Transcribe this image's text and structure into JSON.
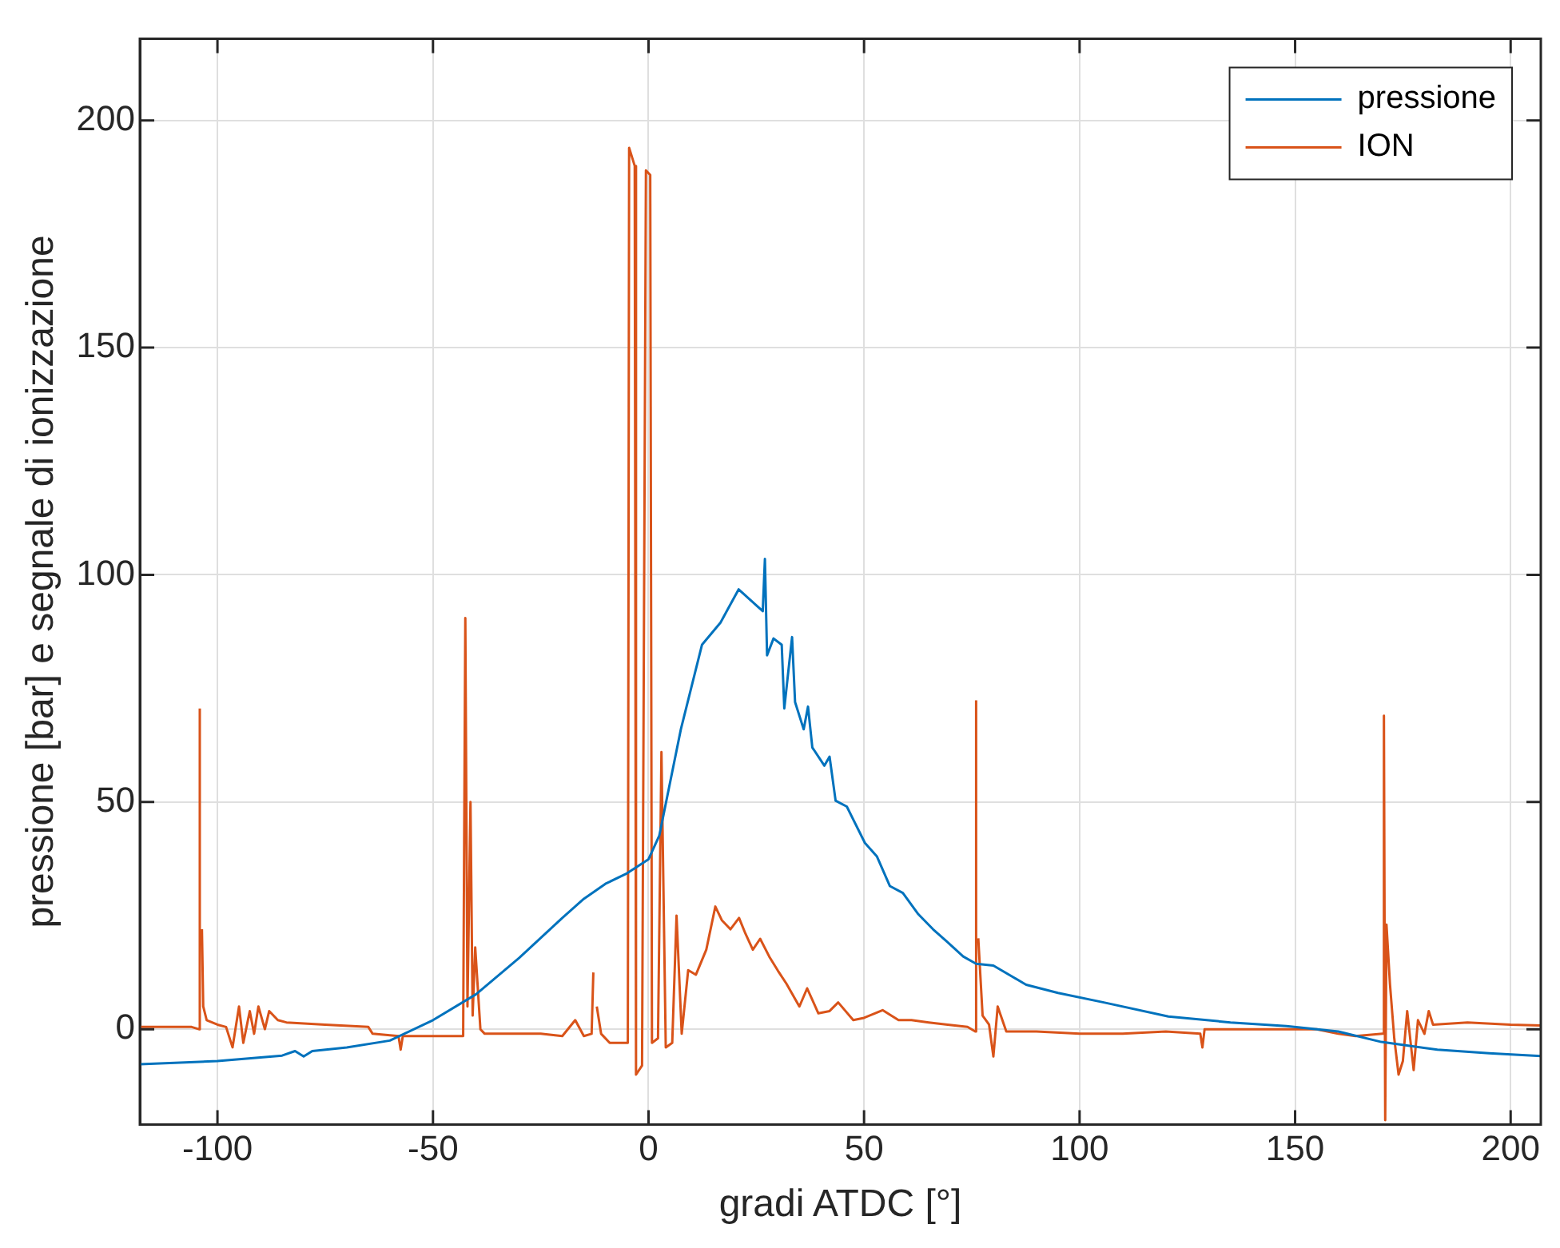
{
  "chart_data": {
    "type": "line",
    "xlabel": "gradi ATDC [°]",
    "ylabel": "pressione [bar] e segnale di ionizzazione",
    "xlim": [
      -118,
      207
    ],
    "ylim": [
      -21,
      218
    ],
    "xticks": [
      -100,
      -50,
      0,
      50,
      100,
      150,
      200
    ],
    "yticks": [
      0,
      50,
      100,
      150,
      200
    ],
    "grid": true,
    "legend": "top right",
    "marker": "none",
    "line_style": "solid",
    "series": [
      {
        "name": "pressione",
        "color": "#0072bd",
        "x": [
          -118,
          -100,
          -90,
          -85,
          -82,
          -80,
          -78,
          -70,
          -60,
          -50,
          -40,
          -30,
          -20,
          -15,
          -12.4,
          -10,
          -5,
          0,
          2.5,
          7.5,
          12.4,
          16.7,
          20.9,
          25,
          26.5,
          27,
          27.5,
          29,
          30.9,
          31.5,
          33.3,
          34,
          36,
          37,
          38,
          40.8,
          42,
          43.4,
          46,
          50.2,
          53,
          56,
          59,
          62.6,
          66,
          69.3,
          73,
          76,
          80,
          87.6,
          95,
          105.6,
          120.6,
          135,
          148,
          160,
          170,
          183,
          195,
          207
        ],
        "values": [
          -7.7,
          -7,
          -6.2,
          -5.8,
          -4.8,
          -6,
          -4.8,
          -4,
          -2.5,
          2,
          7.7,
          15.7,
          24.5,
          28.7,
          30.4,
          32,
          34.3,
          37.4,
          42.6,
          66,
          84.6,
          89.5,
          96.8,
          93.3,
          92,
          103.5,
          82.3,
          86,
          84.6,
          70.6,
          86.3,
          72,
          66,
          71,
          62,
          58,
          60,
          50.3,
          49,
          41,
          38,
          31.5,
          30,
          25.3,
          22,
          19.2,
          16,
          14.4,
          14,
          9.8,
          8,
          5.9,
          2.8,
          1.5,
          0.7,
          -0.5,
          -2.8,
          -4.5,
          -5.3,
          -5.9
        ]
      },
      {
        "name": "ION",
        "color": "#d95319",
        "x": [
          -118,
          -106,
          -104.3,
          -104.1,
          -103.9,
          -103.6,
          -103.3,
          -102.5,
          -100,
          -98,
          -96.5,
          -95,
          -94,
          -92.5,
          -91.5,
          -90.5,
          -89,
          -88,
          -86,
          -84,
          -75,
          -65,
          -64,
          -58,
          -57.5,
          -57,
          -50,
          -43,
          -42.5,
          -42,
          -41.3,
          -40.8,
          -40.2,
          -39,
          -38,
          -25,
          -20,
          -17,
          -15,
          -13.2,
          -12.8,
          -12.4,
          -12,
          -11,
          -9,
          -4.8,
          -4.5,
          -3.2,
          -2.9,
          -1.5,
          -0.6,
          0.4,
          0.8,
          2.2,
          3,
          4,
          5.5,
          6.5,
          7.7,
          9.2,
          11,
          13.4,
          15.5,
          17,
          19,
          21,
          22.5,
          24.2,
          25.9,
          28,
          30,
          32,
          35,
          36.8,
          39.4,
          42,
          44,
          47.5,
          50,
          54.3,
          58,
          61,
          65,
          69.4,
          74,
          75.8,
          76,
          76.2,
          76.5,
          77.5,
          79,
          80,
          81,
          83,
          90,
          100,
          110,
          120,
          128,
          128.5,
          129,
          140,
          155,
          160,
          164,
          170.3,
          170.6,
          170.9,
          171.2,
          172,
          173,
          174,
          175,
          176,
          177.5,
          178.5,
          180,
          181,
          182,
          190,
          200,
          207
        ],
        "values": [
          0.5,
          0.5,
          0,
          70.6,
          null,
          22,
          5,
          2,
          1,
          0.5,
          -4,
          5,
          -3,
          4,
          -1,
          5,
          0,
          4,
          2,
          1.5,
          1,
          0.5,
          -1,
          -1.5,
          -4.5,
          -1.5,
          -1.5,
          -1.5,
          90.5,
          5,
          50,
          3,
          18,
          0,
          -1,
          -1,
          -1.5,
          2,
          -1.5,
          -1,
          12.5,
          null,
          5,
          -1,
          -3,
          -3,
          194,
          190,
          -10,
          -8,
          189,
          188,
          -3,
          -2,
          61,
          -4,
          -3,
          25,
          -1,
          13,
          12,
          17.5,
          27,
          24,
          22,
          24.5,
          21,
          17.5,
          19.9,
          16,
          12.9,
          10,
          5,
          9,
          3.5,
          4,
          5.9,
          2,
          2.5,
          4.2,
          2,
          2,
          1.5,
          1,
          0.5,
          -0.5,
          72.4,
          null,
          20,
          3,
          1,
          -6,
          5,
          -0.5,
          -0.5,
          -1,
          -1,
          -0.5,
          -1,
          -4,
          0,
          0,
          0,
          -1,
          -1.5,
          -1,
          69,
          -20,
          23,
          10,
          -2,
          -10,
          -7,
          4,
          -9,
          2,
          -1,
          4,
          1,
          1.5,
          1,
          0.8
        ]
      }
    ]
  }
}
